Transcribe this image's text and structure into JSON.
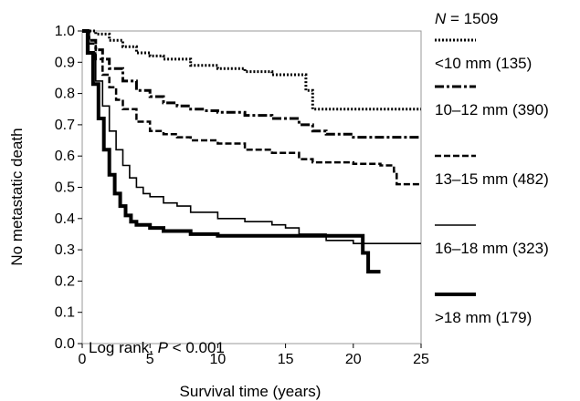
{
  "chart_data": {
    "type": "line",
    "step": true,
    "xlabel": "Survival time (years)",
    "ylabel": "No metastatic death",
    "xlim": [
      0,
      25
    ],
    "ylim": [
      0,
      1
    ],
    "xticks": [
      0,
      5,
      10,
      15,
      20,
      25
    ],
    "yticks": [
      0.0,
      0.1,
      0.2,
      0.3,
      0.4,
      0.5,
      0.6,
      0.7,
      0.8,
      0.9,
      1.0
    ],
    "ytick_labels": [
      "0.0",
      "0.1",
      "0.2",
      "0.3",
      "0.4",
      "0.5",
      "0.6",
      "0.7",
      "0.8",
      "0.9",
      "1.0"
    ],
    "xtick_labels": [
      "0",
      "5",
      "10",
      "15",
      "20",
      "25"
    ],
    "grid": false,
    "legend_position": "right",
    "legend_header": {
      "italic": "N",
      "text": " = 1509"
    },
    "annotation": {
      "prefix": "Log rank, ",
      "italic": "P",
      "suffix": " < 0.001"
    },
    "series": [
      {
        "name": "<10 mm (135)",
        "style": "dotted",
        "width": 3,
        "x": [
          0,
          1,
          2,
          3,
          4,
          5,
          6,
          8,
          10,
          12,
          14,
          15,
          16.5,
          16.5,
          17,
          17,
          20,
          25
        ],
        "y": [
          1.0,
          0.99,
          0.97,
          0.95,
          0.93,
          0.92,
          0.91,
          0.89,
          0.88,
          0.87,
          0.86,
          0.86,
          0.86,
          0.81,
          0.81,
          0.75,
          0.75,
          0.75
        ]
      },
      {
        "name": "10–12 mm (390)",
        "style": "dashdot",
        "width": 3,
        "x": [
          0,
          0.5,
          1,
          1.5,
          2,
          3,
          4,
          5,
          6,
          7,
          8,
          9,
          10,
          12,
          14,
          16,
          17,
          18,
          20,
          25
        ],
        "y": [
          1.0,
          0.97,
          0.94,
          0.91,
          0.88,
          0.84,
          0.81,
          0.79,
          0.77,
          0.76,
          0.75,
          0.745,
          0.74,
          0.73,
          0.72,
          0.7,
          0.68,
          0.67,
          0.66,
          0.66
        ]
      },
      {
        "name": "13–15 mm (482)",
        "style": "dashed",
        "width": 2.5,
        "x": [
          0,
          0.5,
          1,
          1.5,
          2,
          2.5,
          3,
          4,
          5,
          6,
          7,
          8,
          10,
          12,
          14,
          16,
          17,
          18,
          20,
          22,
          23,
          23.2,
          23.2,
          25
        ],
        "y": [
          1.0,
          0.96,
          0.91,
          0.86,
          0.82,
          0.78,
          0.75,
          0.71,
          0.68,
          0.67,
          0.66,
          0.65,
          0.64,
          0.62,
          0.61,
          0.59,
          0.58,
          0.58,
          0.575,
          0.57,
          0.55,
          0.55,
          0.51,
          0.51
        ]
      },
      {
        "name": "16–18 mm (323)",
        "style": "solid",
        "width": 1.6,
        "x": [
          0,
          0.5,
          1,
          1.5,
          2,
          2.5,
          3,
          3.5,
          4,
          4.5,
          5,
          6,
          7,
          8,
          10,
          12,
          14,
          15,
          16,
          18,
          20,
          25
        ],
        "y": [
          1.0,
          0.93,
          0.84,
          0.76,
          0.68,
          0.62,
          0.57,
          0.53,
          0.5,
          0.48,
          0.47,
          0.45,
          0.44,
          0.42,
          0.4,
          0.39,
          0.38,
          0.37,
          0.35,
          0.33,
          0.32,
          0.32
        ]
      },
      {
        "name": ">18 mm (179)",
        "style": "solid",
        "width": 4,
        "x": [
          0,
          0.4,
          0.8,
          1.2,
          1.6,
          2,
          2.4,
          2.8,
          3.2,
          3.6,
          4,
          5,
          6,
          8,
          10,
          12,
          14,
          16,
          18,
          20,
          20.7,
          20.7,
          21.1,
          21.1,
          22
        ],
        "y": [
          1.0,
          0.93,
          0.83,
          0.72,
          0.62,
          0.54,
          0.48,
          0.44,
          0.41,
          0.39,
          0.38,
          0.37,
          0.36,
          0.35,
          0.345,
          0.345,
          0.345,
          0.345,
          0.345,
          0.345,
          0.345,
          0.29,
          0.29,
          0.23,
          0.23
        ]
      }
    ]
  }
}
